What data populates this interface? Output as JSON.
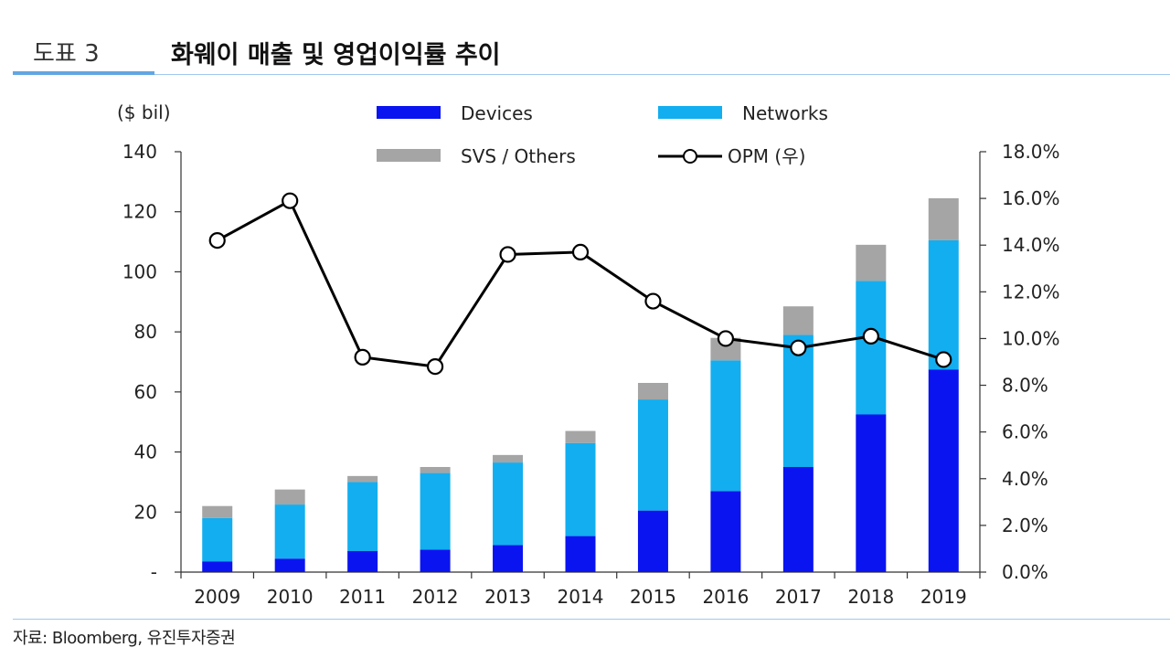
{
  "header": {
    "figure_number": "도표 3",
    "title": "화웨이 매출 및 영업이익률 추이"
  },
  "footer": {
    "source": "자료: Bloomberg, 유진투자증권"
  },
  "chart_data": {
    "type": "bar",
    "stacked": true,
    "title": "화웨이 매출 및 영업이익률 추이",
    "ylabel": "($ bil)",
    "y_unit_label": "($ bil)",
    "ylim": [
      0,
      140
    ],
    "y_ticks": [
      0,
      20,
      40,
      60,
      80,
      100,
      120,
      140
    ],
    "y_tick_labels": [
      "-",
      "20",
      "40",
      "60",
      "80",
      "100",
      "120",
      "140"
    ],
    "y2lim": [
      0,
      18
    ],
    "y2_ticks": [
      0,
      2,
      4,
      6,
      8,
      10,
      12,
      14,
      16,
      18
    ],
    "y2_tick_labels": [
      "0.0%",
      "2.0%",
      "4.0%",
      "6.0%",
      "8.0%",
      "10.0%",
      "12.0%",
      "14.0%",
      "16.0%",
      "18.0%"
    ],
    "categories": [
      "2009",
      "2010",
      "2011",
      "2012",
      "2013",
      "2014",
      "2015",
      "2016",
      "2017",
      "2018",
      "2019"
    ],
    "series": [
      {
        "name": "Devices",
        "kind": "bar",
        "color": "#0a14f0",
        "values": [
          3.5,
          4.5,
          7,
          7.5,
          9,
          12,
          20.5,
          27,
          35,
          52.5,
          67.5
        ]
      },
      {
        "name": "Networks",
        "kind": "bar",
        "color": "#12aef0",
        "values": [
          14.5,
          18,
          23,
          25.5,
          27.5,
          31,
          37,
          43.5,
          44,
          44.5,
          43
        ]
      },
      {
        "name": "SVS / Others",
        "kind": "bar",
        "color": "#a5a5a5",
        "values": [
          4,
          5,
          2,
          2,
          2.5,
          4,
          5.5,
          7.5,
          9.5,
          12,
          14
        ]
      },
      {
        "name": "OPM (우)",
        "kind": "line",
        "axis": "right",
        "color": "#000000",
        "values": [
          14.2,
          15.9,
          9.2,
          8.8,
          13.6,
          13.7,
          11.6,
          10.0,
          9.6,
          10.1,
          9.1
        ]
      }
    ],
    "legend_position": "top",
    "grid": false
  }
}
